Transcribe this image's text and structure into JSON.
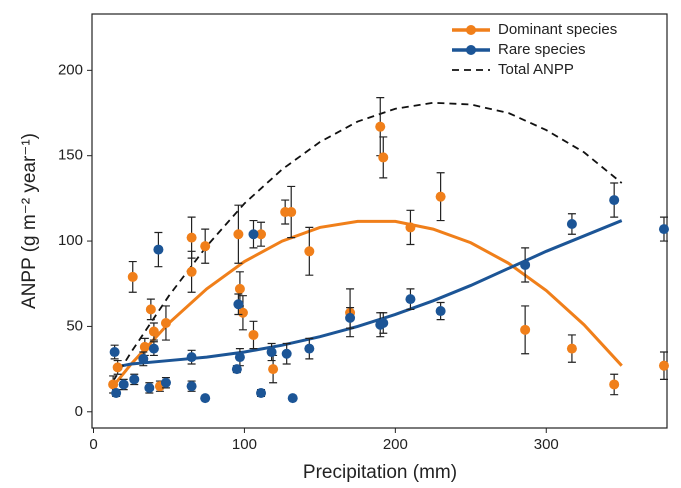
{
  "chart_data": {
    "type": "scatter",
    "x_label": "Precipitation (mm)",
    "y_label": "ANPP (g m⁻² year⁻¹)",
    "xlim": [
      -1,
      380
    ],
    "ylim": [
      -9.5,
      233
    ],
    "xticks": [
      0,
      100,
      200,
      300
    ],
    "yticks": [
      0,
      50,
      100,
      150,
      200
    ],
    "grid": false,
    "legend": "upper right",
    "series": [
      {
        "name": "Dominant species",
        "color": "#f07f1a",
        "x": [
          13,
          16,
          26,
          34,
          38,
          40,
          44,
          48,
          65,
          65,
          74,
          96,
          97,
          99,
          106,
          111,
          119,
          127,
          131,
          143,
          170,
          190,
          192,
          210,
          230,
          286,
          317,
          345,
          378
        ],
        "values": [
          16,
          26,
          79,
          38,
          60,
          47,
          15,
          52,
          102,
          82,
          97,
          104,
          72,
          58,
          45,
          104,
          25,
          117,
          117,
          94,
          58,
          167,
          149,
          108,
          126,
          48,
          37,
          16,
          27
        ],
        "errors": [
          5,
          4,
          9,
          5,
          6,
          5,
          3,
          10,
          12,
          12,
          10,
          17,
          10,
          10,
          8,
          7,
          8,
          7,
          15,
          14,
          14,
          17,
          12,
          10,
          14,
          14,
          8,
          6,
          8
        ]
      },
      {
        "name": "Rare species",
        "color": "#1c5596",
        "x": [
          14,
          15,
          20,
          27,
          33,
          37,
          40,
          43,
          48,
          65,
          65,
          74,
          95,
          96,
          97,
          106,
          111,
          118,
          128,
          132,
          143,
          170,
          190,
          192,
          210,
          230,
          286,
          317,
          345,
          378
        ],
        "values": [
          35,
          11,
          16,
          19,
          31,
          14,
          37,
          95,
          17,
          32,
          15,
          8,
          25,
          63,
          32,
          104,
          11,
          35,
          34,
          8,
          37,
          55,
          51,
          52,
          66,
          59,
          86,
          110,
          124,
          107
        ],
        "errors": [
          4,
          2,
          3,
          3,
          4,
          3,
          4,
          10,
          3,
          4,
          3,
          0,
          2,
          6,
          5,
          8,
          2,
          5,
          6,
          0,
          6,
          6,
          7,
          6,
          6,
          5,
          10,
          6,
          10,
          7
        ]
      }
    ],
    "lines": [
      {
        "color": "#f07f1a",
        "dash": false,
        "x": [
          13,
          25,
          50,
          75,
          100,
          125,
          150,
          175,
          200,
          225,
          250,
          275,
          300,
          325,
          350
        ],
        "values": [
          15,
          28,
          52,
          72,
          88,
          100,
          108,
          111.5,
          111.5,
          107,
          99,
          87,
          71,
          51,
          27
        ]
      },
      {
        "color": "#1c5596",
        "dash": false,
        "x": [
          13,
          25,
          50,
          75,
          100,
          125,
          150,
          175,
          200,
          225,
          250,
          275,
          300,
          325,
          350
        ],
        "values": [
          26,
          28,
          30,
          32,
          35,
          39,
          44,
          50,
          57,
          65,
          74,
          84,
          94,
          103,
          112
        ]
      },
      {
        "name": "Total ANPP",
        "color": "#111111",
        "dash": true,
        "x": [
          13,
          25,
          50,
          75,
          100,
          125,
          150,
          175,
          200,
          225,
          250,
          275,
          300,
          325,
          350
        ],
        "values": [
          18,
          35,
          68,
          97,
          122,
          142,
          158,
          170,
          177.5,
          181,
          180,
          175,
          165,
          152,
          134
        ]
      }
    ]
  }
}
